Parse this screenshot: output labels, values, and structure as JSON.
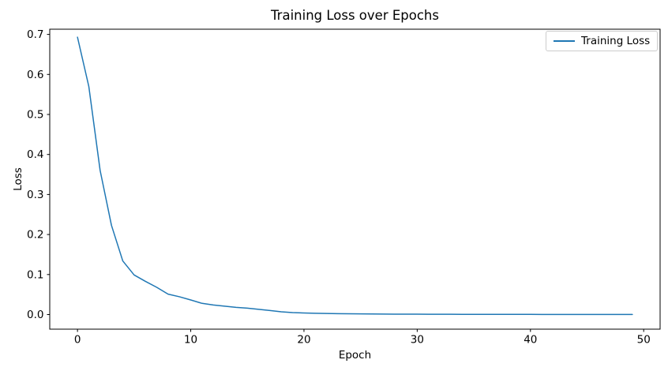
{
  "figure": {
    "background": "#ffffff",
    "axes_edge_color": "#000000",
    "text_color": "#000000"
  },
  "chart_data": {
    "type": "line",
    "title": "Training Loss over Epochs",
    "xlabel": "Epoch",
    "ylabel": "Loss",
    "x": [
      0,
      1,
      2,
      3,
      4,
      5,
      6,
      7,
      8,
      9,
      10,
      11,
      12,
      13,
      14,
      15,
      16,
      17,
      18,
      19,
      20,
      21,
      22,
      23,
      24,
      25,
      26,
      27,
      28,
      29,
      30,
      31,
      32,
      33,
      34,
      35,
      36,
      37,
      38,
      39,
      40,
      41,
      42,
      43,
      44,
      45,
      46,
      47,
      48,
      49
    ],
    "series": [
      {
        "name": "Training Loss",
        "color": "#1f77b4",
        "values": [
          0.693,
          0.57,
          0.36,
          0.223,
          0.134,
          0.099,
          0.083,
          0.068,
          0.051,
          0.0445,
          0.0365,
          0.028,
          0.024,
          0.021,
          0.018,
          0.016,
          0.013,
          0.01,
          0.007,
          0.005,
          0.004,
          0.0033,
          0.0028,
          0.0023,
          0.0019,
          0.0016,
          0.0014,
          0.0012,
          0.0011,
          0.001,
          0.0009,
          0.0008,
          0.0007,
          0.0007,
          0.0006,
          0.0006,
          0.0005,
          0.0005,
          0.0004,
          0.0004,
          0.0004,
          0.0003,
          0.0003,
          0.0003,
          0.0003,
          0.0002,
          0.0002,
          0.0002,
          0.0002,
          0.0002
        ]
      }
    ],
    "xlim": [
      -2.45,
      51.45
    ],
    "ylim": [
      -0.0365,
      0.713
    ],
    "xticks": [
      0,
      10,
      20,
      30,
      40,
      50
    ],
    "xtick_labels": [
      "0",
      "10",
      "20",
      "30",
      "40",
      "50"
    ],
    "yticks": [
      0.0,
      0.1,
      0.2,
      0.3,
      0.4,
      0.5,
      0.6,
      0.7
    ],
    "ytick_labels": [
      "0.0",
      "0.1",
      "0.2",
      "0.3",
      "0.4",
      "0.5",
      "0.6",
      "0.7"
    ],
    "grid": false,
    "legend": {
      "position": "upper right",
      "entries": [
        {
          "label": "Training Loss",
          "color": "#1f77b4"
        }
      ]
    }
  }
}
